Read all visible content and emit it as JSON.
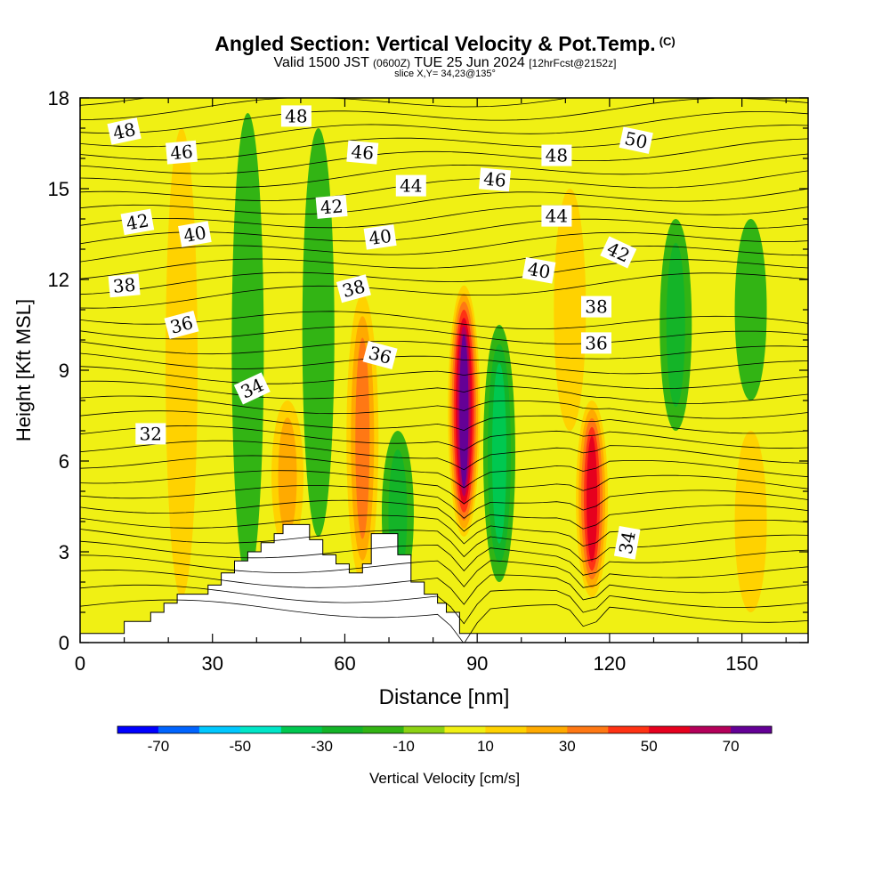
{
  "header": {
    "title": "Angled Section: Vertical Velocity & Pot.Temp.",
    "title_tag": "(C)",
    "valid_prefix": "Valid 1500 JST",
    "valid_utc": "(0600Z)",
    "valid_date": "TUE 25 Jun 2024",
    "forecast": "[12hrFcst@2152z]",
    "slice": "slice X,Y= 34,23@135°"
  },
  "chart_data": {
    "type": "heatmap",
    "xlabel": "Distance [nm]",
    "ylabel": "Height [Kft MSL]",
    "xlim": [
      0,
      165
    ],
    "ylim": [
      0,
      18
    ],
    "xticks": [
      0,
      30,
      60,
      90,
      120,
      150
    ],
    "yticks": [
      0,
      3,
      6,
      9,
      12,
      15,
      18
    ],
    "colorbar": {
      "label": "Vertical Velocity [cm/s]",
      "tick_labels": [
        "-70",
        "-50",
        "-30",
        "-10",
        "10",
        "30",
        "50",
        "70"
      ],
      "tick_values": [
        -70,
        -50,
        -30,
        -10,
        10,
        30,
        50,
        70
      ],
      "levels": [
        -80,
        -70,
        -60,
        -50,
        -40,
        -30,
        -20,
        -10,
        0,
        10,
        20,
        30,
        40,
        50,
        60,
        70,
        80
      ],
      "colors": [
        "#0000ff",
        "#0064ff",
        "#00c8ff",
        "#00e6c8",
        "#00c850",
        "#14b428",
        "#32b414",
        "#8cd214",
        "#f0f014",
        "#ffd200",
        "#ffaa00",
        "#ff7814",
        "#ff3214",
        "#e6001e",
        "#b4005a",
        "#640096"
      ]
    },
    "background_color": "#f0f014",
    "updrafts": [
      {
        "x": 87,
        "z_bottom": 3.5,
        "z_top": 11.8,
        "peak": 80
      },
      {
        "x": 116,
        "z_bottom": 1.5,
        "z_top": 8.0,
        "peak": 60
      },
      {
        "x": 64,
        "z_bottom": 2.0,
        "z_top": 11.5,
        "peak": 35
      },
      {
        "x": 47,
        "z_bottom": 3.0,
        "z_top": 8.0,
        "peak": 30
      },
      {
        "x": 23,
        "z_bottom": 1.5,
        "z_top": 17.0,
        "peak": 20
      },
      {
        "x": 111,
        "z_bottom": 7.0,
        "z_top": 15.0,
        "peak": 20
      },
      {
        "x": 152,
        "z_bottom": 1.0,
        "z_top": 7.0,
        "peak": 20
      }
    ],
    "downdrafts": [
      {
        "x": 95,
        "z_bottom": 2.0,
        "z_top": 10.5,
        "peak": -35
      },
      {
        "x": 72,
        "z_bottom": 1.5,
        "z_top": 7.0,
        "peak": -30
      },
      {
        "x": 54,
        "z_bottom": 3.5,
        "z_top": 17.0,
        "peak": -20
      },
      {
        "x": 38,
        "z_bottom": 2.0,
        "z_top": 17.5,
        "peak": -20
      },
      {
        "x": 135,
        "z_bottom": 7.0,
        "z_top": 14.0,
        "peak": -30
      },
      {
        "x": 152,
        "z_bottom": 8.0,
        "z_top": 14.0,
        "peak": -15
      }
    ],
    "terrain": [
      [
        0,
        0.3
      ],
      [
        10,
        0.3
      ],
      [
        10,
        0.7
      ],
      [
        16,
        0.7
      ],
      [
        16,
        1.0
      ],
      [
        19,
        1.0
      ],
      [
        19,
        1.3
      ],
      [
        22,
        1.3
      ],
      [
        22,
        1.6
      ],
      [
        29,
        1.6
      ],
      [
        29,
        1.9
      ],
      [
        32,
        1.9
      ],
      [
        32,
        2.3
      ],
      [
        35,
        2.3
      ],
      [
        35,
        2.7
      ],
      [
        38,
        2.7
      ],
      [
        38,
        3.0
      ],
      [
        41,
        3.0
      ],
      [
        41,
        3.3
      ],
      [
        44,
        3.3
      ],
      [
        44,
        3.6
      ],
      [
        46,
        3.6
      ],
      [
        46,
        3.9
      ],
      [
        52,
        3.9
      ],
      [
        52,
        3.4
      ],
      [
        55,
        3.4
      ],
      [
        55,
        2.9
      ],
      [
        58,
        2.9
      ],
      [
        58,
        2.6
      ],
      [
        61,
        2.6
      ],
      [
        61,
        2.3
      ],
      [
        64,
        2.3
      ],
      [
        64,
        2.6
      ],
      [
        66,
        2.6
      ],
      [
        66,
        3.6
      ],
      [
        72,
        3.6
      ],
      [
        72,
        2.9
      ],
      [
        75,
        2.9
      ],
      [
        75,
        2.0
      ],
      [
        78,
        2.0
      ],
      [
        78,
        1.6
      ],
      [
        81,
        1.6
      ],
      [
        81,
        1.3
      ],
      [
        83,
        1.3
      ],
      [
        83,
        1.0
      ],
      [
        86,
        1.0
      ],
      [
        86,
        0.3
      ],
      [
        165,
        0.3
      ]
    ],
    "isentrope_labels": [
      {
        "x": 10,
        "y": 16.9,
        "text": "48",
        "angle": -12
      },
      {
        "x": 23,
        "y": 16.2,
        "text": "46",
        "angle": -5
      },
      {
        "x": 49,
        "y": 17.4,
        "text": "48",
        "angle": 0
      },
      {
        "x": 64,
        "y": 16.2,
        "text": "46",
        "angle": 5
      },
      {
        "x": 75,
        "y": 15.1,
        "text": "44",
        "angle": 0
      },
      {
        "x": 94,
        "y": 15.3,
        "text": "46",
        "angle": 5
      },
      {
        "x": 108,
        "y": 16.1,
        "text": "48",
        "angle": 0
      },
      {
        "x": 126,
        "y": 16.6,
        "text": "50",
        "angle": 12
      },
      {
        "x": 13,
        "y": 13.9,
        "text": "42",
        "angle": -10
      },
      {
        "x": 57,
        "y": 14.4,
        "text": "42",
        "angle": -5
      },
      {
        "x": 26,
        "y": 13.5,
        "text": "40",
        "angle": -10
      },
      {
        "x": 68,
        "y": 13.4,
        "text": "40",
        "angle": -8
      },
      {
        "x": 108,
        "y": 14.1,
        "text": "44",
        "angle": 0
      },
      {
        "x": 104,
        "y": 12.3,
        "text": "40",
        "angle": 10
      },
      {
        "x": 122,
        "y": 12.9,
        "text": "42",
        "angle": 25
      },
      {
        "x": 10,
        "y": 11.8,
        "text": "38",
        "angle": -5
      },
      {
        "x": 62,
        "y": 11.7,
        "text": "38",
        "angle": -15
      },
      {
        "x": 117,
        "y": 11.1,
        "text": "38",
        "angle": 0
      },
      {
        "x": 23,
        "y": 10.5,
        "text": "36",
        "angle": -15
      },
      {
        "x": 68,
        "y": 9.5,
        "text": "36",
        "angle": 15
      },
      {
        "x": 117,
        "y": 9.9,
        "text": "36",
        "angle": 0
      },
      {
        "x": 39,
        "y": 8.4,
        "text": "34",
        "angle": -25
      },
      {
        "x": 16,
        "y": 6.9,
        "text": "32",
        "angle": 0
      },
      {
        "x": 124,
        "y": 3.3,
        "text": "34",
        "angle": -80
      }
    ]
  }
}
